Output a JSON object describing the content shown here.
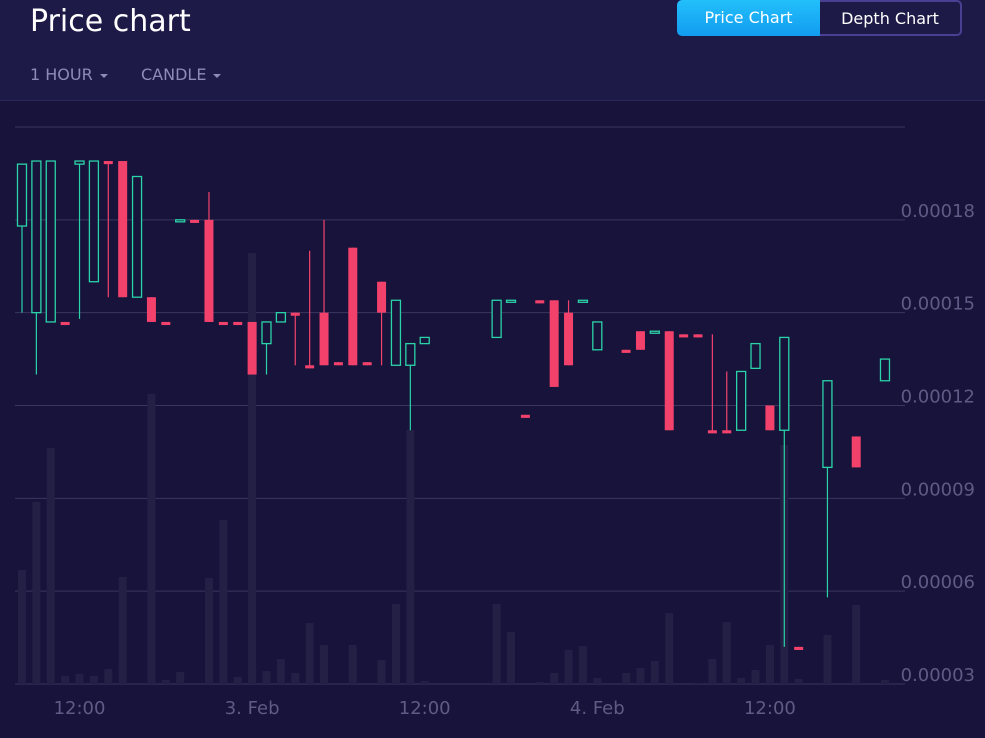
{
  "header": {
    "title": "Price chart",
    "buttons": [
      "Price Chart",
      "Depth Chart"
    ],
    "dropdowns": [
      "1 HOUR",
      "CANDLE"
    ]
  },
  "chart_data": {
    "type": "candlestick",
    "x": [
      null,
      null,
      null,
      null,
      "12:00",
      null,
      null,
      null,
      null,
      null,
      null,
      null,
      null,
      null,
      null,
      null,
      "3. Feb",
      null,
      null,
      null,
      null,
      null,
      null,
      null,
      null,
      null,
      null,
      null,
      "12:00",
      null,
      null,
      null,
      null,
      null,
      null,
      null,
      null,
      null,
      null,
      null,
      "4. Feb",
      null,
      null,
      null,
      null,
      null,
      null,
      null,
      null,
      null,
      null,
      null,
      "12:00",
      null,
      null,
      null,
      null,
      null,
      null,
      null,
      null
    ],
    "open": [
      0.000178,
      0.00015,
      0.000147,
      0.000147,
      0.000198,
      0.00016,
      0.000199,
      0.000199,
      0.000155,
      0.000155,
      0.000147,
      0.00018,
      0.00018,
      0.00018,
      0.000147,
      0.000147,
      0.000147,
      0.00014,
      0.000147,
      0.00015,
      0.000133,
      0.00015,
      0.000134,
      0.000171,
      0.000134,
      0.00016,
      0.000133,
      0.000133,
      0.00014,
      null,
      null,
      null,
      null,
      0.000142,
      0.000154,
      0.000117,
      0.000154,
      0.000154,
      0.00015,
      0.000154,
      0.000138,
      null,
      0.000138,
      0.000144,
      0.000144,
      0.000144,
      0.000143,
      0.000143,
      0.000112,
      0.000112,
      0.000112,
      0.000132,
      0.00012,
      0.000112,
      4.2e-05,
      null,
      0.0001,
      null,
      0.00011,
      null,
      0.000128
    ],
    "high": [
      0.000198,
      0.000199,
      0.000199,
      0.000147,
      0.000199,
      0.000199,
      0.000199,
      0.000199,
      0.000194,
      0.000155,
      0.000147,
      0.00018,
      0.00018,
      0.000189,
      0.000147,
      0.000147,
      0.000147,
      0.000147,
      0.00015,
      0.00015,
      0.00017,
      0.00018,
      0.000134,
      0.000171,
      0.000134,
      0.00016,
      0.000154,
      0.00014,
      0.000142,
      null,
      null,
      null,
      null,
      0.000154,
      0.000154,
      0.000117,
      0.000154,
      0.000154,
      0.000154,
      0.000154,
      0.000147,
      null,
      0.000138,
      0.000144,
      0.000144,
      0.000144,
      0.000143,
      0.000143,
      0.000143,
      0.000131,
      0.000131,
      0.00014,
      0.00012,
      0.000142,
      4.2e-05,
      null,
      0.000128,
      null,
      0.00011,
      null,
      0.000135
    ],
    "low": [
      0.00015,
      0.00013,
      0.000147,
      0.000146,
      0.000148,
      0.00016,
      0.000155,
      0.000155,
      0.000155,
      0.000147,
      0.000146,
      0.00018,
      0.000179,
      0.000147,
      0.000146,
      0.000146,
      0.00013,
      0.00013,
      0.000147,
      0.000133,
      0.000132,
      0.000133,
      0.000133,
      0.000133,
      0.000133,
      0.000133,
      0.000133,
      0.000112,
      0.00014,
      null,
      null,
      null,
      null,
      0.000142,
      0.000154,
      0.000116,
      0.000153,
      0.000126,
      0.000133,
      0.000154,
      0.000138,
      null,
      0.000137,
      0.000138,
      0.000144,
      0.000112,
      0.000142,
      0.000142,
      0.000111,
      0.000111,
      0.000112,
      0.000132,
      0.000112,
      4.2e-05,
      4.1e-05,
      null,
      5.8e-05,
      null,
      0.0001,
      null,
      0.000128
    ],
    "close": [
      0.000198,
      0.000199,
      0.000199,
      0.000146,
      0.000199,
      0.000199,
      0.000198,
      0.000155,
      0.000194,
      0.000147,
      0.000146,
      0.00018,
      0.000179,
      0.000147,
      0.000146,
      0.000146,
      0.00013,
      0.000147,
      0.00015,
      0.000149,
      0.000132,
      0.000133,
      0.000133,
      0.000133,
      0.000133,
      0.00015,
      0.000154,
      0.00014,
      0.000142,
      null,
      null,
      null,
      null,
      0.000154,
      0.000154,
      0.000116,
      0.000153,
      0.000126,
      0.000133,
      0.000154,
      0.000147,
      null,
      0.000137,
      0.000138,
      0.000144,
      0.000112,
      0.000142,
      0.000142,
      0.000111,
      0.000111,
      0.000131,
      0.00014,
      0.000112,
      0.000142,
      4.1e-05,
      null,
      0.000128,
      null,
      0.0001,
      null,
      0.000135
    ],
    "volume": [
      114,
      182,
      236,
      8,
      10,
      8,
      15,
      107,
      0,
      290,
      4,
      12,
      0,
      106,
      164,
      7,
      431,
      13,
      25,
      11,
      61,
      39,
      0,
      39,
      0,
      24,
      80,
      254,
      3,
      0,
      0,
      0,
      0,
      80,
      52,
      0,
      2,
      11,
      34,
      38,
      6,
      0,
      11,
      16,
      23,
      71,
      0,
      1,
      25,
      62,
      6,
      14,
      39,
      239,
      5,
      0,
      49,
      0,
      79,
      0,
      4
    ],
    "up_color": "#2bd3a8",
    "down_color": "#f2426c",
    "volume_color": "#231f45",
    "ylim": [
      3e-05,
      0.00021
    ],
    "yticks": [
      3e-05,
      6e-05,
      9e-05,
      0.00012,
      0.00015,
      0.00018
    ],
    "grid": true
  }
}
